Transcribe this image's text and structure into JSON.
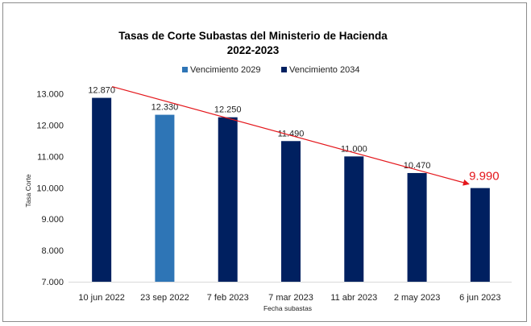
{
  "chart_data": {
    "type": "bar",
    "title": "Tasas de Corte Subastas del Ministerio de Hacienda",
    "subtitle": "2022-2023",
    "xlabel": "Fecha subastas",
    "ylabel": "Tasa Corte",
    "ylim": [
      7,
      13
    ],
    "yticks": [
      7,
      8,
      9,
      10,
      11,
      12,
      13
    ],
    "ytick_labels": [
      "7.000",
      "8.000",
      "9.000",
      "10.000",
      "11.000",
      "12.000",
      "13.000"
    ],
    "legend_position": "top",
    "grid": false,
    "categories": [
      "10 jun 2022",
      "23  sep 2022",
      "7 feb 2023",
      "7 mar 2023",
      "11 abr 2023",
      "2 may 2023",
      "6 jun 2023"
    ],
    "values": [
      12.87,
      12.33,
      12.25,
      11.49,
      11.0,
      10.47,
      9.99
    ],
    "value_labels": [
      "12.870",
      "12.330",
      "12.250",
      "11.490",
      "11.000",
      "10.470",
      "9.990"
    ],
    "series_index": [
      1,
      0,
      1,
      1,
      1,
      1,
      1
    ],
    "highlight_index": 6,
    "series": [
      {
        "name": "Vencimiento 2029",
        "color": "#2e75b6"
      },
      {
        "name": "Vencimiento 2034",
        "color": "#002060"
      }
    ],
    "trendline": {
      "from_value": 12.87,
      "to_value": 9.99,
      "color": "#e4161b"
    },
    "highlight_color": "#e4161b"
  }
}
